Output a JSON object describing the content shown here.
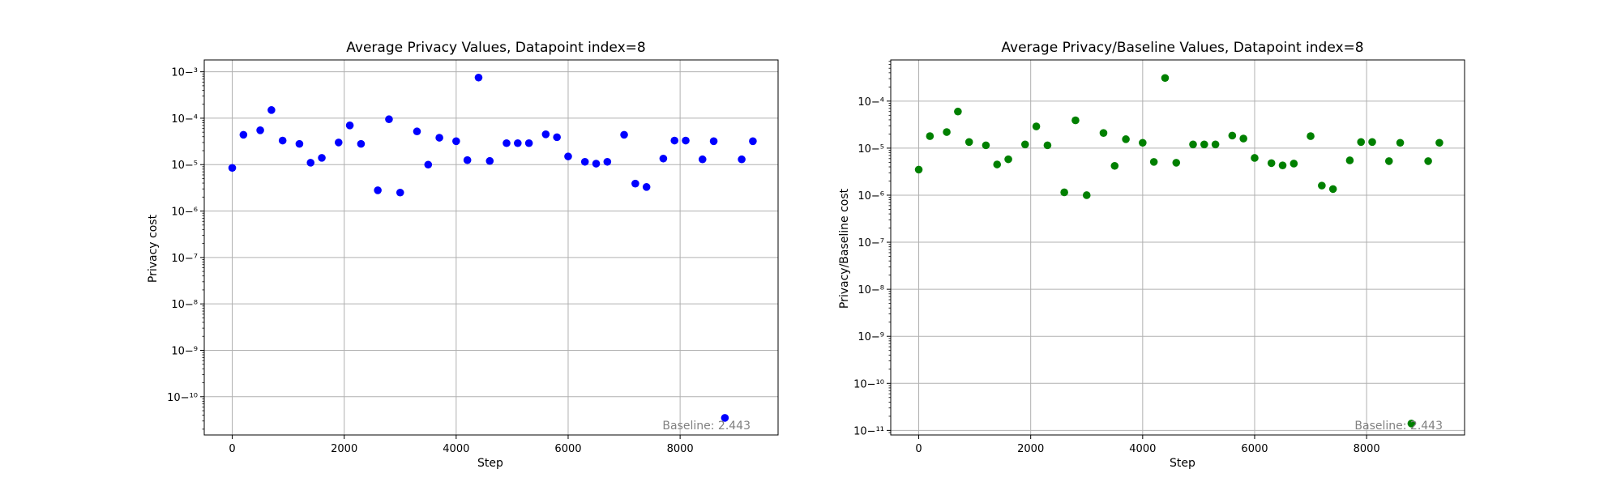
{
  "chart_data": [
    {
      "type": "scatter",
      "title": "Average Privacy Values, Datapoint index=8",
      "xlabel": "Step",
      "ylabel": "Privacy cost",
      "yscale": "log",
      "grid": true,
      "xlim": [
        -500,
        9750
      ],
      "ylim": [
        1.5e-11,
        0.0018
      ],
      "x_ticks": [
        "0",
        "2000",
        "4000",
        "6000",
        "8000"
      ],
      "x_tick_values": [
        0,
        2000,
        4000,
        6000,
        8000
      ],
      "y_tick_exponents": [
        -10,
        -9,
        -8,
        -7,
        -6,
        -5,
        -4,
        -3
      ],
      "marker_color": "#0000ff",
      "annotation": "Baseline: 2.443",
      "x": [
        0,
        200,
        500,
        700,
        900,
        1200,
        1400,
        1600,
        1900,
        2100,
        2300,
        2600,
        2800,
        3000,
        3300,
        3500,
        3700,
        4000,
        4200,
        4400,
        4600,
        4900,
        5100,
        5300,
        5600,
        5800,
        6000,
        6300,
        6500,
        6700,
        7000,
        7200,
        7400,
        7700,
        7900,
        8100,
        8400,
        8600,
        8800,
        9100,
        9300
      ],
      "y": [
        8.5e-06,
        4.4e-05,
        5.5e-05,
        0.00015,
        3.3e-05,
        2.8e-05,
        1.1e-05,
        1.4e-05,
        3e-05,
        7e-05,
        2.8e-05,
        2.8e-06,
        9.5e-05,
        2.5e-06,
        5.2e-05,
        1e-05,
        3.8e-05,
        3.2e-05,
        1.25e-05,
        0.00075,
        1.2e-05,
        2.9e-05,
        2.9e-05,
        2.9e-05,
        4.5e-05,
        3.9e-05,
        1.5e-05,
        1.15e-05,
        1.05e-05,
        1.15e-05,
        4.4e-05,
        3.9e-06,
        3.3e-06,
        1.35e-05,
        3.3e-05,
        3.3e-05,
        1.3e-05,
        3.2e-05,
        3.5e-11,
        1.3e-05,
        3.2e-05
      ]
    },
    {
      "type": "scatter",
      "title": "Average Privacy/Baseline Values, Datapoint index=8",
      "xlabel": "Step",
      "ylabel": "Privacy/Baseline cost",
      "yscale": "log",
      "grid": true,
      "xlim": [
        -500,
        9750
      ],
      "ylim": [
        8e-12,
        0.00075
      ],
      "x_ticks": [
        "0",
        "2000",
        "4000",
        "6000",
        "8000"
      ],
      "x_tick_values": [
        0,
        2000,
        4000,
        6000,
        8000
      ],
      "y_tick_exponents": [
        -11,
        -10,
        -9,
        -8,
        -7,
        -6,
        -5,
        -4
      ],
      "marker_color": "#008000",
      "annotation": "Baseline: 2.443",
      "x": [
        0,
        200,
        500,
        700,
        900,
        1200,
        1400,
        1600,
        1900,
        2100,
        2300,
        2600,
        2800,
        3000,
        3300,
        3500,
        3700,
        4000,
        4200,
        4400,
        4600,
        4900,
        5100,
        5300,
        5600,
        5800,
        6000,
        6300,
        6500,
        6700,
        7000,
        7200,
        7400,
        7700,
        7900,
        8100,
        8400,
        8600,
        8800,
        9100,
        9300
      ],
      "y": [
        3.5e-06,
        1.8e-05,
        2.2e-05,
        6e-05,
        1.35e-05,
        1.15e-05,
        4.5e-06,
        5.8e-06,
        1.2e-05,
        2.9e-05,
        1.15e-05,
        1.15e-06,
        3.9e-05,
        1e-06,
        2.1e-05,
        4.2e-06,
        1.55e-05,
        1.3e-05,
        5.1e-06,
        0.00031,
        4.9e-06,
        1.2e-05,
        1.2e-05,
        1.2e-05,
        1.85e-05,
        1.6e-05,
        6.2e-06,
        4.8e-06,
        4.3e-06,
        4.7e-06,
        1.8e-05,
        1.6e-06,
        1.35e-06,
        5.5e-06,
        1.35e-05,
        1.35e-05,
        5.3e-06,
        1.3e-05,
        1.4e-11,
        5.3e-06,
        1.3e-05
      ]
    }
  ]
}
